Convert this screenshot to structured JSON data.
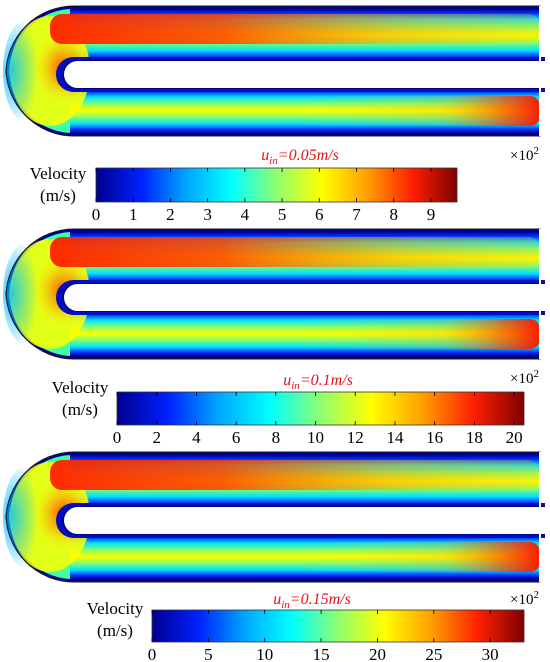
{
  "colormap_stops": [
    "#00008f",
    "#0020ff",
    "#00a6ff",
    "#00ffff",
    "#8fff70",
    "#ffff00",
    "#ffa000",
    "#ff2000",
    "#800000"
  ],
  "panels": [
    {
      "condition_var": "u",
      "condition_sub": "in",
      "condition_value": "=0.05m/s",
      "label_line1": "Velocity",
      "label_line2": "(m/s)",
      "multiplier": "×10",
      "multiplier_exp": "2",
      "ticks": [
        "0",
        "1",
        "2",
        "3",
        "4",
        "5",
        "6",
        "7",
        "8",
        "9"
      ],
      "scale_max": 9.7
    },
    {
      "condition_var": "u",
      "condition_sub": "in",
      "condition_value": "=0.1m/s",
      "label_line1": "Velocity",
      "label_line2": "(m/s)",
      "multiplier": "×10",
      "multiplier_exp": "2",
      "ticks": [
        "0",
        "2",
        "4",
        "6",
        "8",
        "10",
        "12",
        "14",
        "16",
        "18",
        "20"
      ],
      "scale_max": 20.5
    },
    {
      "condition_var": "u",
      "condition_sub": "in",
      "condition_value": "=0.15m/s",
      "label_line1": "Velocity",
      "label_line2": "(m/s)",
      "multiplier": "×10",
      "multiplier_exp": "2",
      "ticks": [
        "0",
        "5",
        "10",
        "15",
        "20",
        "25",
        "30"
      ],
      "scale_max": 33
    }
  ]
}
